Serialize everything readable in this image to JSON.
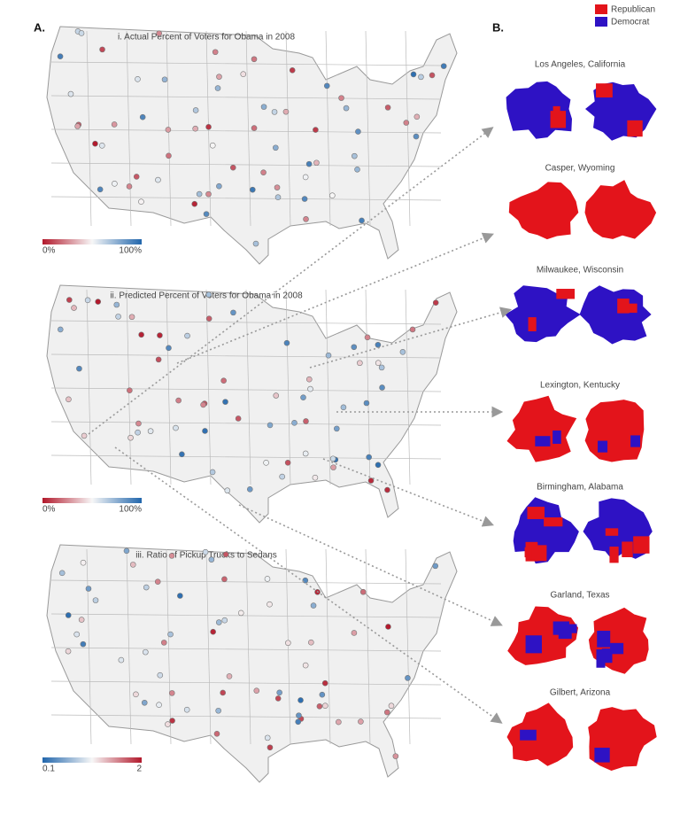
{
  "panel_a": {
    "label": "A.",
    "maps": [
      {
        "title": "i. Actual  Percent of Voters for Obama in 2008",
        "colorbar": {
          "min_label": "0%",
          "max_label": "100%",
          "colors": [
            "#b2182b",
            "#f7f7f7",
            "#2166ac"
          ]
        }
      },
      {
        "title": "ii. Predicted Percent of Voters for Obama in 2008",
        "colorbar": {
          "min_label": "0%",
          "max_label": "100%",
          "colors": [
            "#b2182b",
            "#f7f7f7",
            "#2166ac"
          ]
        }
      },
      {
        "title": "iii. Ratio of Pickup Trucks to Sedans",
        "colorbar": {
          "min_label": "0.1",
          "max_label": "2",
          "colors": [
            "#2166ac",
            "#f7f7f7",
            "#b2182b"
          ]
        }
      }
    ]
  },
  "panel_b": {
    "label": "B.",
    "legend": [
      {
        "name": "Republican",
        "color": "#e3141b"
      },
      {
        "name": "Democrat",
        "color": "#2e12c4"
      }
    ],
    "cities": [
      "Los Angeles, California",
      "Casper, Wyoming",
      "Milwaukee, Wisconsin",
      "Lexington, Kentucky",
      "Birmingham, Alabama",
      "Garland, Texas",
      "Gilbert, Arizona"
    ]
  }
}
